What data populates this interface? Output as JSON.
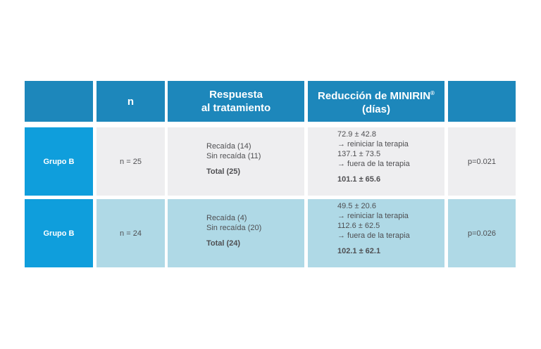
{
  "header": {
    "col_n": "n",
    "col_respuesta_l1": "Respuesta",
    "col_respuesta_l2": "al tratamiento",
    "col_reduccion_l1": "Reducción de MINIRIN",
    "col_reduccion_reg": "®",
    "col_reduccion_l2": "(días)"
  },
  "rows": [
    {
      "group": "Grupo B",
      "n": "n = 25",
      "resp1": "Recaída (14)",
      "resp2": "Sin recaída (11)",
      "resp_total": "Total (25)",
      "red1": "72.9 ± 42.8",
      "red2": "→ reiniciar la terapia",
      "red3": "137.1 ± 73.5",
      "red4": "→ fuera de la terapia",
      "red_total": "101.1 ± 65.6",
      "p": "p=0.021"
    },
    {
      "group": "Grupo B",
      "n": "n = 24",
      "resp1": "Recaída (4)",
      "resp2": "Sin recaída (20)",
      "resp_total": "Total (24)",
      "red1": "49.5 ± 20.6",
      "red2": "→ reiniciar la terapia",
      "red3": "112.6 ± 62.5",
      "red4": "→ fuera de la terapia",
      "red_total": "102.1 ± 62.1",
      "p": "p=0.026"
    }
  ],
  "colors": {
    "header_bg": "#1d87bb",
    "group_label_bg": "#0f9edc",
    "row1_bg": "#eeeef0",
    "row2_bg": "#afd9e6"
  }
}
